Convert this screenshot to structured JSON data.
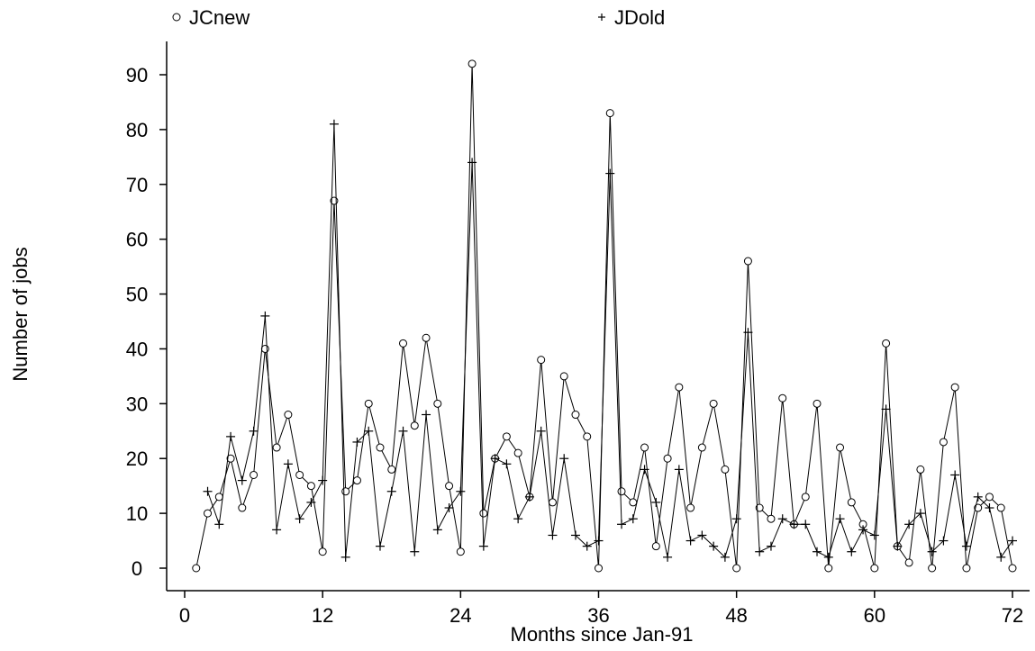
{
  "chart_data": {
    "type": "line",
    "title": "",
    "xlabel": "Months since Jan-91",
    "ylabel": "Number of jobs",
    "xlim": [
      0,
      72
    ],
    "ylim": [
      0,
      90
    ],
    "xticks": [
      0,
      12,
      24,
      36,
      48,
      60,
      72
    ],
    "yticks": [
      0,
      10,
      20,
      30,
      40,
      50,
      60,
      70,
      80,
      90
    ],
    "grid": false,
    "legend_position": "top",
    "x": [
      1,
      2,
      3,
      4,
      5,
      6,
      7,
      8,
      9,
      10,
      11,
      12,
      13,
      14,
      15,
      16,
      17,
      18,
      19,
      20,
      21,
      22,
      23,
      24,
      25,
      26,
      27,
      28,
      29,
      30,
      31,
      32,
      33,
      34,
      35,
      36,
      37,
      38,
      39,
      40,
      41,
      42,
      43,
      44,
      45,
      46,
      47,
      48,
      49,
      50,
      51,
      52,
      53,
      54,
      55,
      56,
      57,
      58,
      59,
      60,
      61,
      62,
      63,
      64,
      65,
      66,
      67,
      68,
      69,
      70,
      71,
      72
    ],
    "series": [
      {
        "name": "JCnew",
        "marker": "circle",
        "values": [
          0,
          10,
          13,
          20,
          11,
          17,
          40,
          22,
          28,
          17,
          15,
          3,
          67,
          14,
          16,
          30,
          22,
          18,
          41,
          26,
          42,
          30,
          15,
          3,
          92,
          10,
          20,
          24,
          21,
          13,
          38,
          12,
          35,
          28,
          24,
          0,
          83,
          14,
          12,
          22,
          4,
          20,
          33,
          11,
          22,
          30,
          18,
          0,
          56,
          11,
          9,
          31,
          8,
          13,
          30,
          0,
          22,
          12,
          8,
          0,
          41,
          4,
          1,
          18,
          0,
          23,
          33,
          0,
          11,
          13,
          11,
          0
        ]
      },
      {
        "name": "JDold",
        "marker": "plus",
        "values": [
          null,
          14,
          8,
          24,
          16,
          25,
          46,
          7,
          19,
          9,
          12,
          16,
          81,
          2,
          23,
          25,
          4,
          14,
          25,
          3,
          28,
          7,
          11,
          14,
          74,
          4,
          20,
          19,
          9,
          13,
          25,
          6,
          20,
          6,
          4,
          5,
          72,
          8,
          9,
          18,
          12,
          2,
          18,
          5,
          6,
          4,
          2,
          9,
          43,
          3,
          4,
          9,
          8,
          8,
          3,
          2,
          9,
          3,
          7,
          6,
          29,
          4,
          8,
          10,
          3,
          5,
          17,
          4,
          13,
          11,
          2,
          5
        ]
      }
    ]
  }
}
